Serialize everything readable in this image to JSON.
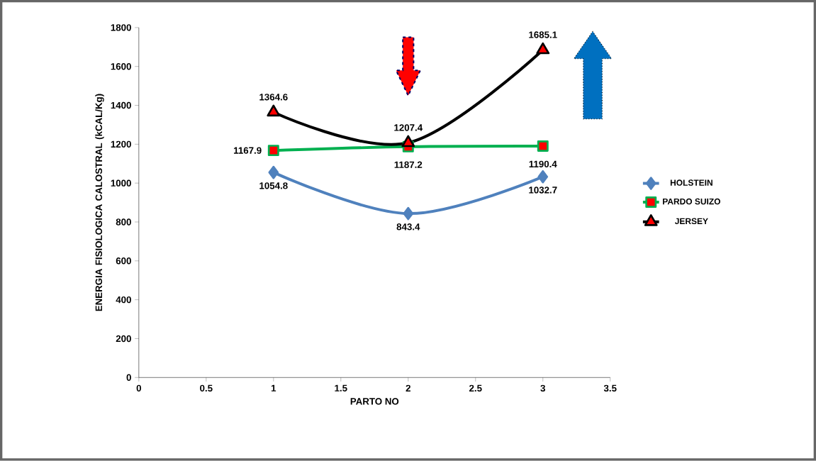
{
  "chart_data": {
    "type": "line",
    "xlabel": "PARTO NO",
    "ylabel": "ENERGIA  FISIOLOGICA CALOSTRAL (kCAL/Kg)",
    "x": [
      1,
      2,
      3
    ],
    "series": [
      {
        "name": "HOLSTEIN",
        "color": "#4f81bd",
        "marker": "diamond",
        "values": [
          1054.8,
          843.4,
          1032.7
        ]
      },
      {
        "name": "PARDO SUIZO",
        "color": "#00b050",
        "marker": "square",
        "values": [
          1167.9,
          1187.2,
          1190.4
        ]
      },
      {
        "name": "JERSEY",
        "color": "#000000",
        "marker": "triangle",
        "values": [
          1364.6,
          1207.4,
          1685.1
        ]
      }
    ],
    "xlim": [
      0,
      3.5
    ],
    "xticks": [
      0,
      0.5,
      1,
      1.5,
      2,
      2.5,
      3,
      3.5
    ],
    "ylim": [
      0,
      1800
    ],
    "yticks": [
      0,
      200,
      400,
      600,
      800,
      1000,
      1200,
      1400,
      1600,
      1800
    ],
    "data_labels": true,
    "legend": "right",
    "grid": false
  }
}
